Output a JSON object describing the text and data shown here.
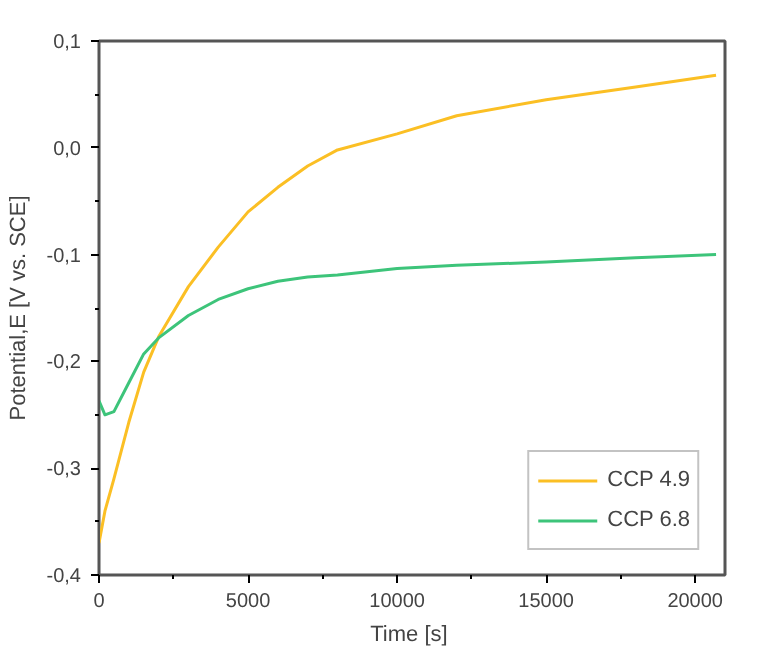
{
  "chart_data": {
    "type": "line",
    "xlabel": "Time  [s]",
    "ylabel": "Potential,E [V vs. SCE]",
    "x": [
      0,
      200,
      500,
      1000,
      1500,
      2000,
      3000,
      4000,
      5000,
      6000,
      7000,
      8000,
      10000,
      12000,
      15000,
      18000,
      20700
    ],
    "series": [
      {
        "name": "CCP 4.9",
        "color": "#fbbf24",
        "values": [
          -0.37,
          -0.34,
          -0.31,
          -0.257,
          -0.21,
          -0.177,
          -0.13,
          -0.093,
          -0.06,
          -0.037,
          -0.017,
          -0.002,
          0.013,
          0.03,
          0.045,
          0.057,
          0.068
        ]
      },
      {
        "name": "CCP 6.8",
        "color": "#3dc47a",
        "values": [
          -0.237,
          -0.25,
          -0.247,
          -0.22,
          -0.193,
          -0.178,
          -0.157,
          -0.142,
          -0.132,
          -0.125,
          -0.121,
          -0.119,
          -0.113,
          -0.11,
          -0.107,
          -0.103,
          -0.1
        ]
      }
    ],
    "xlim": [
      0,
      21000
    ],
    "ylim": [
      -0.4,
      0.1
    ],
    "xticks": [
      0,
      5000,
      10000,
      15000,
      20000
    ],
    "yticks": [
      {
        "value": -0.4,
        "label": "-0,4"
      },
      {
        "value": -0.3,
        "label": "-0,3"
      },
      {
        "value": -0.2,
        "label": "-0,2"
      },
      {
        "value": -0.1,
        "label": "-0,1"
      },
      {
        "value": 0,
        "label": "0,0"
      },
      {
        "value": 0.1,
        "label": "0,1"
      }
    ],
    "grid": false,
    "legend": "bottom right",
    "marker": "none",
    "line_style": "solid"
  }
}
